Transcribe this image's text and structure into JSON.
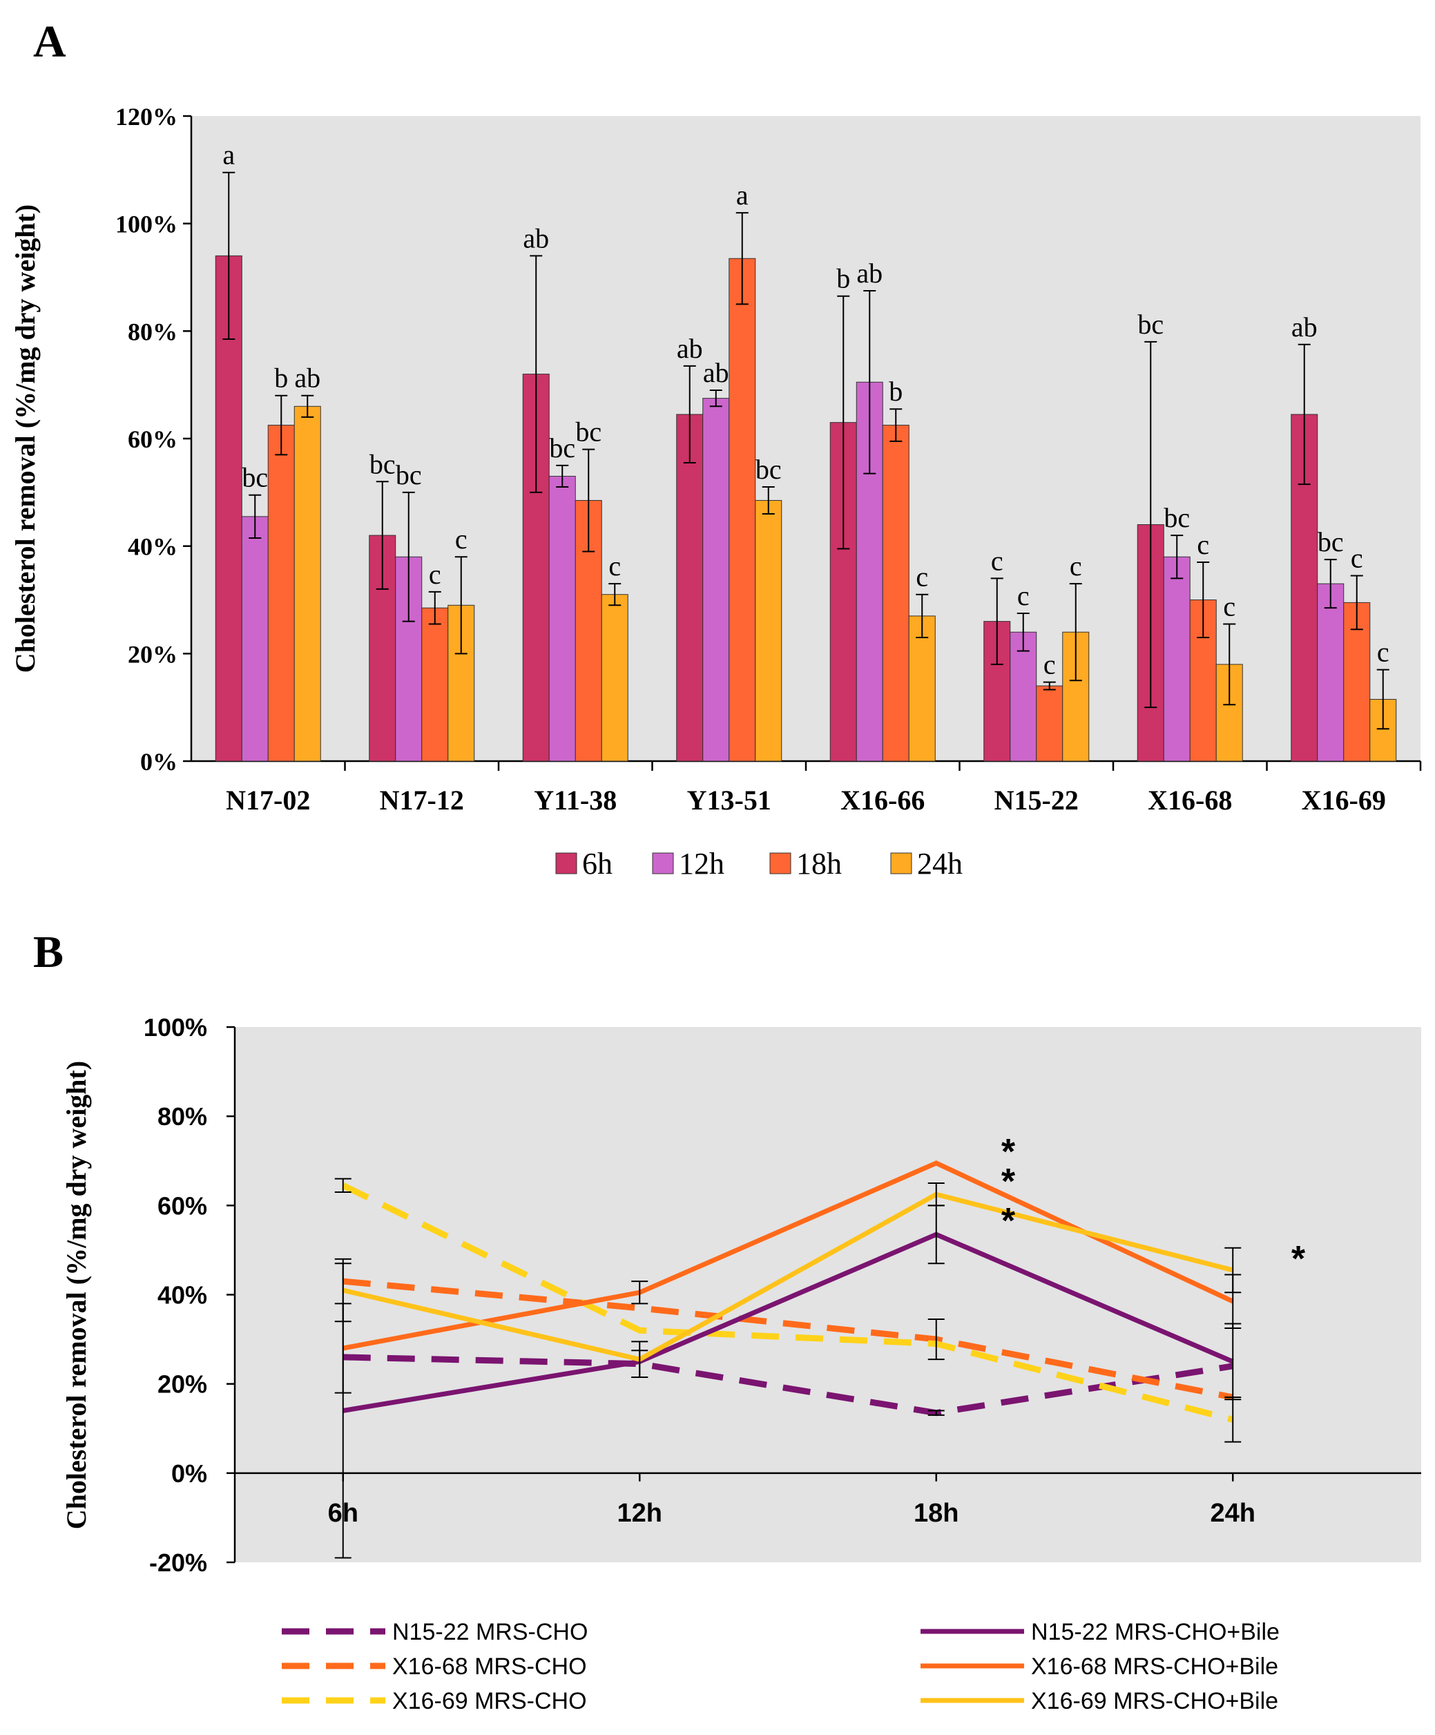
{
  "chart_data": [
    {
      "panel": "A",
      "type": "bar",
      "title": "",
      "xlabel": "",
      "ylabel": "Cholesterol removal (%/mg dry weight)",
      "ylim": [
        0,
        1.2
      ],
      "yticks": [
        "0%",
        "20%",
        "40%",
        "60%",
        "80%",
        "100%",
        "120%"
      ],
      "categories": [
        "N17-02",
        "N17-12",
        "Y11-38",
        "Y13-51",
        "X16-66",
        "N15-22",
        "X16-68",
        "X16-69"
      ],
      "grid": false,
      "legend_position": "bottom",
      "series": [
        {
          "name": "6h",
          "color": "#cc3366",
          "values": [
            0.94,
            0.42,
            0.72,
            0.645,
            0.63,
            0.26,
            0.44,
            0.645
          ],
          "errors": [
            0.155,
            0.1,
            0.22,
            0.09,
            0.235,
            0.08,
            0.34,
            0.13
          ],
          "letters": [
            "a",
            "bc",
            "ab",
            "ab",
            "b",
            "c",
            "bc",
            "ab"
          ]
        },
        {
          "name": "12h",
          "color": "#cc66cc",
          "values": [
            0.455,
            0.38,
            0.53,
            0.675,
            0.705,
            0.24,
            0.38,
            0.33
          ],
          "errors": [
            0.04,
            0.12,
            0.02,
            0.015,
            0.17,
            0.035,
            0.04,
            0.045
          ],
          "letters": [
            "bc",
            "bc",
            "bc",
            "ab",
            "ab",
            "c",
            "bc",
            "bc"
          ]
        },
        {
          "name": "18h",
          "color": "#ff6633",
          "values": [
            0.625,
            0.285,
            0.485,
            0.935,
            0.625,
            0.14,
            0.3,
            0.295
          ],
          "errors": [
            0.055,
            0.03,
            0.095,
            0.085,
            0.03,
            0.007,
            0.07,
            0.05
          ],
          "letters": [
            "b",
            "c",
            "bc",
            "a",
            "b",
            "c",
            "c",
            "c"
          ]
        },
        {
          "name": "24h",
          "color": "#ffaa22",
          "values": [
            0.66,
            0.29,
            0.31,
            0.485,
            0.27,
            0.24,
            0.18,
            0.115
          ],
          "errors": [
            0.02,
            0.09,
            0.02,
            0.025,
            0.04,
            0.09,
            0.075,
            0.055
          ],
          "letters": [
            "ab",
            "c",
            "c",
            "bc",
            "c",
            "c",
            "c",
            "c"
          ]
        }
      ]
    },
    {
      "panel": "B",
      "type": "line",
      "title": "",
      "xlabel": "",
      "ylabel": "Cholesterol removal (%/mg dry weight)",
      "categories": [
        "6h",
        "12h",
        "18h",
        "24h"
      ],
      "ylim": [
        -0.2,
        1.0
      ],
      "yticks": [
        "-20%",
        "0%",
        "20%",
        "40%",
        "60%",
        "80%",
        "100%"
      ],
      "grid": false,
      "legend_position": "bottom",
      "series": [
        {
          "name": "N15-22 MRS-CHO",
          "color": "#7a1470",
          "dashed": true,
          "values": [
            0.26,
            0.245,
            0.135,
            0.24
          ],
          "errors": [
            0,
            0.03,
            0.005,
            0
          ]
        },
        {
          "name": "X16-68 MRS-CHO",
          "color": "#ff6a1a",
          "dashed": true,
          "values": [
            0.43,
            0.37,
            0.3,
            0.17
          ],
          "errors": [
            0,
            0,
            0.045,
            0
          ]
        },
        {
          "name": "X16-69 MRS-CHO",
          "color": "#ffd21a",
          "dashed": true,
          "values": [
            0.645,
            0.32,
            0.29,
            0.12
          ],
          "errors": [
            0.015,
            0,
            0,
            0.05
          ]
        },
        {
          "name": "N15-22 MRS-CHO+Bile",
          "color": "#7a1470",
          "dashed": false,
          "values": [
            0.14,
            0.25,
            0.535,
            0.25
          ],
          "errors": [
            0.33,
            0,
            0.065,
            0.085
          ]
        },
        {
          "name": "X16-68 MRS-CHO+Bile",
          "color": "#ff6a1a",
          "dashed": false,
          "values": [
            0.28,
            0.405,
            0.695,
            0.385
          ],
          "errors": [
            0.1,
            0.025,
            0,
            0.06
          ]
        },
        {
          "name": "X16-69 MRS-CHO+Bile",
          "color": "#ffc21a",
          "dashed": false,
          "values": [
            0.41,
            0.255,
            0.625,
            0.455
          ],
          "errors": [
            0.07,
            0.04,
            0.025,
            0.05
          ]
        }
      ],
      "annotations": [
        {
          "text": "*",
          "near_category": "18h"
        },
        {
          "text": "*",
          "near_category": "18h"
        },
        {
          "text": "*",
          "near_category": "18h"
        },
        {
          "text": "*",
          "near_category": "24h"
        }
      ]
    }
  ],
  "panel_labels": {
    "a": "A",
    "b": "B"
  }
}
